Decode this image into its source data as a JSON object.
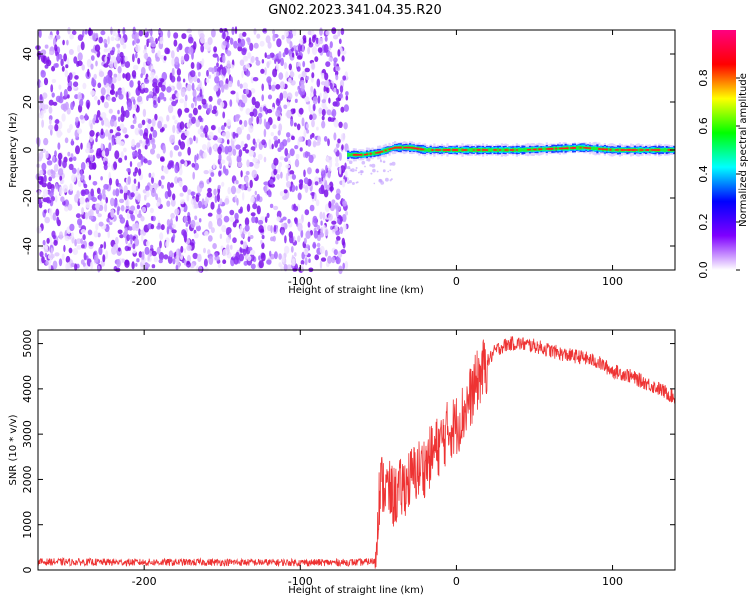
{
  "title": "GN02.2023.341.04.35.R20",
  "chart_data": [
    {
      "type": "heatmap",
      "xlabel": "Height of straight line (km)",
      "ylabel": "Frequency (Hz)",
      "xlim": [
        -268,
        140
      ],
      "ylim": [
        -50,
        50
      ],
      "x_ticks": [
        -200,
        -100,
        0,
        100
      ],
      "x_tick_labels": [
        "-200",
        "-100",
        "0",
        "100"
      ],
      "y_ticks": [
        -40,
        -20,
        0,
        20,
        40
      ],
      "y_tick_labels": [
        "-40",
        "-20",
        "0",
        "20",
        "40"
      ],
      "noise_region_x": [
        -268,
        -70
      ],
      "signal_profile": [
        {
          "x": -70,
          "freq": -2
        },
        {
          "x": -60,
          "freq": -2
        },
        {
          "x": -50,
          "freq": -1
        },
        {
          "x": -40,
          "freq": 1
        },
        {
          "x": -30,
          "freq": 1
        },
        {
          "x": -20,
          "freq": 0
        },
        {
          "x": 0,
          "freq": 0
        },
        {
          "x": 40,
          "freq": 0
        },
        {
          "x": 80,
          "freq": 1
        },
        {
          "x": 100,
          "freq": 0
        },
        {
          "x": 140,
          "freq": 0
        }
      ],
      "colorbar": {
        "label": "Normalized spectral amplitude",
        "range": [
          0,
          1
        ],
        "ticks": [
          0.0,
          0.2,
          0.4,
          0.6,
          0.8
        ],
        "tick_labels": [
          "0.0",
          "0.2",
          "0.4",
          "0.6",
          "0.8"
        ],
        "colormap": [
          "#ffffff",
          "#7f00ff",
          "#0000ff",
          "#00ffff",
          "#00ff00",
          "#ffff00",
          "#ff0000",
          "#ff0080"
        ]
      },
      "grid": false
    },
    {
      "type": "line",
      "xlabel": "Height of straight line (km)",
      "ylabel": "SNR (10 * v/v)",
      "xlim": [
        -268,
        140
      ],
      "ylim": [
        0,
        5300
      ],
      "x_ticks": [
        -200,
        -100,
        0,
        100
      ],
      "x_tick_labels": [
        "-200",
        "-100",
        "0",
        "100"
      ],
      "y_ticks": [
        0,
        1000,
        2000,
        3000,
        4000,
        5000
      ],
      "y_tick_labels": [
        "0",
        "1000",
        "2000",
        "3000",
        "4000",
        "5000"
      ],
      "color": "#ee3333",
      "grid": false,
      "series": [
        {
          "x": [
            -268,
            -240,
            -200,
            -150,
            -100,
            -80,
            -60,
            -52,
            -50,
            -48,
            -45,
            -40,
            -35,
            -30,
            -25,
            -20,
            -15,
            -10,
            -5,
            0,
            5,
            10,
            15,
            20,
            25,
            30,
            35,
            40,
            50,
            60,
            70,
            80,
            90,
            95,
            100,
            110,
            120,
            130,
            140
          ],
          "y": [
            180,
            175,
            170,
            170,
            165,
            165,
            170,
            200,
            1500,
            1900,
            1800,
            1600,
            1800,
            2000,
            2200,
            2300,
            2600,
            2800,
            3100,
            3200,
            3500,
            3900,
            4300,
            4600,
            4850,
            4950,
            5000,
            5000,
            4950,
            4850,
            4750,
            4700,
            4600,
            4500,
            4400,
            4300,
            4150,
            4000,
            3800
          ]
        }
      ]
    }
  ]
}
